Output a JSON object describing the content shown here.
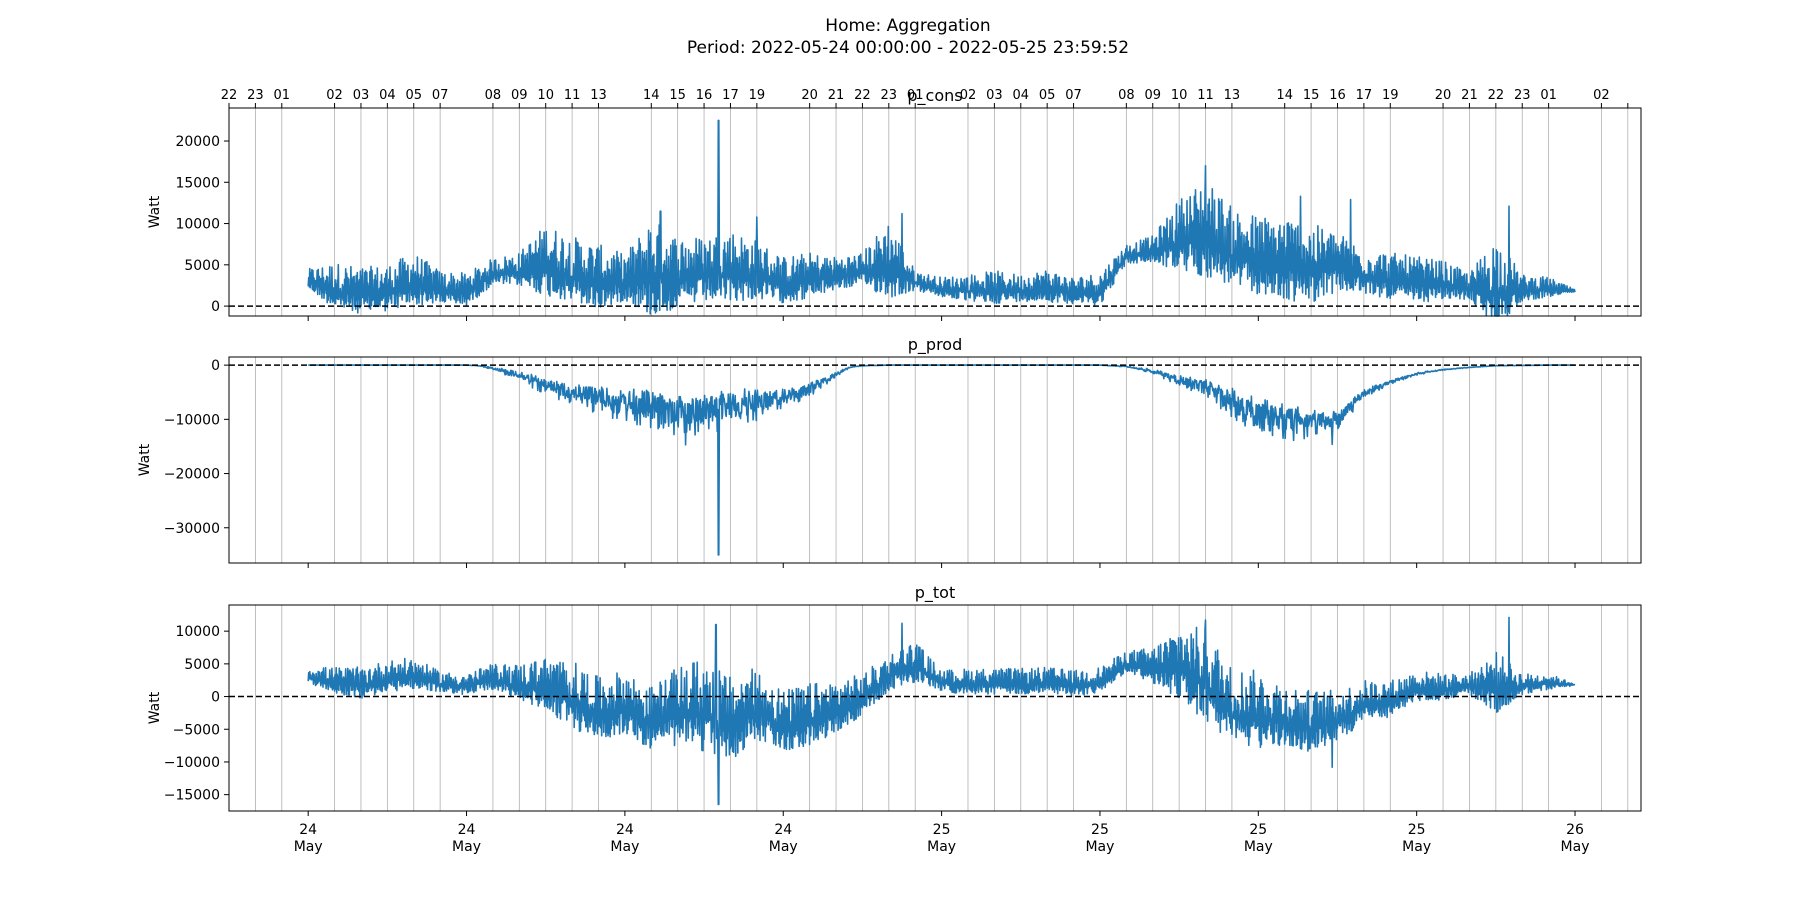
{
  "figure": {
    "title_line1": "Home: Aggregation",
    "title_line2": "Period: 2022-05-24 00:00:00 - 2022-05-25 23:59:52"
  },
  "colors": {
    "series": "#1f77b4",
    "grid": "#b0b0b0",
    "zero_line": "#000000",
    "axes": "#000000"
  },
  "chart_data": {
    "type": "line",
    "x_range": [
      "2022-05-23 21:00",
      "2022-05-26 02:30"
    ],
    "top_hour_ticks": [
      "22",
      "23",
      "01",
      "02",
      "03",
      "04",
      "05",
      "07",
      "08",
      "09",
      "10",
      "11",
      "13",
      "14",
      "15",
      "16",
      "17",
      "19",
      "20",
      "21",
      "22",
      "23",
      "01",
      "02",
      "03",
      "04",
      "05",
      "07",
      "08",
      "09",
      "10",
      "11",
      "13",
      "14",
      "15",
      "16",
      "17",
      "19",
      "20",
      "21",
      "22",
      "23",
      "01",
      "02"
    ],
    "bottom_ticks": [
      {
        "time": "2022-05-24 00:00",
        "day": "24",
        "month": "May"
      },
      {
        "time": "2022-05-24 06:00",
        "day": "24",
        "month": "May"
      },
      {
        "time": "2022-05-24 12:00",
        "day": "24",
        "month": "May"
      },
      {
        "time": "2022-05-24 18:00",
        "day": "24",
        "month": "May"
      },
      {
        "time": "2022-05-25 00:00",
        "day": "25",
        "month": "May"
      },
      {
        "time": "2022-05-25 06:00",
        "day": "25",
        "month": "May"
      },
      {
        "time": "2022-05-25 12:00",
        "day": "25",
        "month": "May"
      },
      {
        "time": "2022-05-25 18:00",
        "day": "25",
        "month": "May"
      },
      {
        "time": "2022-05-26 00:00",
        "day": "26",
        "month": "May"
      }
    ],
    "reference_line": 0,
    "panels": [
      {
        "title": "p_cons",
        "ylabel": "Watt",
        "ylim": [
          -1200,
          24000
        ],
        "yticks": [
          0,
          5000,
          10000,
          15000,
          20000
        ],
        "ytick_labels": [
          "0",
          "5000",
          "10000",
          "15000",
          "20000"
        ],
        "envelope": {
          "hours": [
            0,
            1,
            2,
            3,
            4,
            5,
            6,
            7,
            8,
            9,
            10,
            11,
            12,
            13,
            14,
            15,
            16,
            17,
            18,
            19,
            20,
            21,
            22,
            23,
            24,
            25,
            26,
            27,
            28,
            29,
            30,
            31,
            32,
            33,
            34,
            35,
            36,
            37,
            38,
            39,
            40,
            41,
            42,
            43,
            44,
            45,
            46,
            47,
            48
          ],
          "base": [
            3000,
            1800,
            1200,
            1500,
            2500,
            1800,
            1500,
            3800,
            4000,
            4500,
            3500,
            2500,
            2800,
            3200,
            3000,
            3500,
            3800,
            3500,
            2500,
            3000,
            3500,
            4000,
            4500,
            2800,
            2000,
            1800,
            1800,
            1800,
            2000,
            1500,
            1600,
            6000,
            6500,
            7500,
            8000,
            6000,
            5000,
            4500,
            4000,
            4500,
            3500,
            3000,
            2500,
            2500,
            2000,
            1500,
            1800,
            2000,
            1800
          ],
          "amp": [
            1500,
            3500,
            3500,
            3500,
            4000,
            2500,
            2500,
            2000,
            2500,
            5500,
            5000,
            5000,
            3500,
            7500,
            5500,
            5000,
            5500,
            4500,
            3500,
            3500,
            2500,
            2500,
            6000,
            1500,
            1500,
            2000,
            2500,
            2000,
            2500,
            2000,
            2500,
            1500,
            2000,
            5500,
            7500,
            6000,
            6000,
            6500,
            6000,
            4500,
            3500,
            3500,
            3500,
            3000,
            2000,
            7000,
            2000,
            1500,
            200
          ]
        },
        "spikes": [
          {
            "hour": 15.55,
            "value": 22500
          },
          {
            "hour": 34.0,
            "value": 17000
          },
          {
            "hour": 13.35,
            "value": 11500
          },
          {
            "hour": 22.5,
            "value": 11200
          },
          {
            "hour": 37.6,
            "value": 13300
          },
          {
            "hour": 39.5,
            "value": 12900
          },
          {
            "hour": 45.5,
            "value": 12100
          },
          {
            "hour": 17.0,
            "value": 10800
          }
        ],
        "series": [
          {
            "x_start": "2022-05-24 00:00",
            "x_end": "2022-05-25 23:59:52"
          }
        ]
      },
      {
        "title": "p_prod",
        "ylabel": "Watt",
        "ylim": [
          -36500,
          1500
        ],
        "yticks": [
          0,
          -10000,
          -20000,
          -30000
        ],
        "ytick_labels": [
          "0",
          "−10000",
          "−20000",
          "−30000"
        ],
        "envelope": {
          "hours": [
            0,
            1,
            2,
            3,
            4,
            5,
            6,
            6.5,
            7,
            8,
            9,
            10,
            11,
            12,
            13,
            14,
            15,
            16,
            17,
            18,
            19,
            20,
            20.5,
            21,
            22,
            23,
            24,
            25,
            26,
            27,
            28,
            29,
            30,
            31,
            32,
            33,
            34,
            35,
            36,
            37,
            38,
            39,
            40,
            41,
            42,
            43,
            44,
            45,
            46,
            47,
            48
          ],
          "base": [
            0,
            0,
            0,
            0,
            0,
            0,
            0,
            -100,
            -500,
            -1500,
            -3500,
            -4500,
            -5000,
            -6000,
            -7000,
            -7500,
            -7500,
            -6500,
            -6000,
            -5500,
            -4000,
            -1500,
            -400,
            -100,
            0,
            0,
            0,
            0,
            0,
            0,
            0,
            0,
            0,
            -200,
            -1000,
            -2500,
            -3500,
            -6000,
            -8000,
            -9000,
            -10000,
            -9500,
            -5000,
            -3000,
            -1500,
            -800,
            -400,
            -100,
            -50,
            0,
            0
          ],
          "amp": [
            0,
            0,
            0,
            0,
            0,
            0,
            0,
            100,
            500,
            2000,
            3000,
            4000,
            6000,
            6500,
            7500,
            8000,
            8000,
            8000,
            6000,
            3500,
            3000,
            1000,
            200,
            50,
            0,
            0,
            0,
            0,
            0,
            0,
            0,
            0,
            0,
            200,
            800,
            2000,
            3000,
            6000,
            6000,
            7000,
            5500,
            3500,
            2000,
            800,
            500,
            200,
            100,
            50,
            50,
            0,
            0
          ]
        },
        "spikes": [
          {
            "hour": 15.55,
            "value": -35000
          },
          {
            "hour": 14.3,
            "value": -14700
          },
          {
            "hour": 38.8,
            "value": -14600
          }
        ],
        "series": [
          {
            "x_start": "2022-05-24 00:00",
            "x_end": "2022-05-25 23:59:52"
          }
        ]
      },
      {
        "title": "p_tot",
        "ylabel": "Watt",
        "ylim": [
          -17500,
          14000
        ],
        "yticks": [
          -15000,
          -10000,
          -5000,
          0,
          5000,
          10000
        ],
        "ytick_labels": [
          "−15000",
          "−10000",
          "−5000",
          "0",
          "5000",
          "10000"
        ],
        "envelope": {
          "hours": [
            0,
            1,
            2,
            3,
            4,
            5,
            6,
            7,
            8,
            9,
            10,
            11,
            12,
            13,
            14,
            15,
            16,
            17,
            18,
            19,
            20,
            21,
            22,
            23,
            24,
            25,
            26,
            27,
            28,
            29,
            30,
            31,
            32,
            33,
            34,
            35,
            36,
            37,
            38,
            39,
            40,
            41,
            42,
            43,
            44,
            45,
            46,
            47,
            48
          ],
          "base": [
            3000,
            2000,
            1500,
            2500,
            3000,
            1800,
            1500,
            2500,
            1500,
            1000,
            -1000,
            -3000,
            -2000,
            -4500,
            -3000,
            -3000,
            -5000,
            -2500,
            -5000,
            -4000,
            -2500,
            -500,
            3000,
            4500,
            2000,
            1800,
            1800,
            1800,
            2000,
            1500,
            2000,
            5000,
            4000,
            4000,
            1500,
            -3000,
            -3500,
            -4000,
            -5000,
            -4000,
            -1500,
            -1000,
            1000,
            1000,
            1500,
            1000,
            1500,
            2000,
            1800
          ],
          "amp": [
            1500,
            2500,
            3000,
            3000,
            3000,
            2000,
            2000,
            2500,
            3500,
            5000,
            6500,
            6000,
            6000,
            6000,
            7500,
            9000,
            8000,
            7000,
            6000,
            6000,
            5000,
            4000,
            3500,
            4000,
            2000,
            2500,
            2500,
            2500,
            2500,
            2500,
            2500,
            2000,
            3500,
            7000,
            9000,
            7500,
            7500,
            6000,
            6000,
            5000,
            4000,
            3500,
            3000,
            2500,
            2000,
            6000,
            2000,
            1500,
            200
          ]
        },
        "spikes": [
          {
            "hour": 15.55,
            "value": -16500
          },
          {
            "hour": 15.45,
            "value": 11000
          },
          {
            "hour": 22.5,
            "value": 11200
          },
          {
            "hour": 34.0,
            "value": 11700
          },
          {
            "hour": 45.5,
            "value": 12100
          },
          {
            "hour": 38.8,
            "value": -10800
          }
        ],
        "series": [
          {
            "x_start": "2022-05-24 00:00",
            "x_end": "2022-05-25 23:59:52"
          }
        ]
      }
    ]
  }
}
